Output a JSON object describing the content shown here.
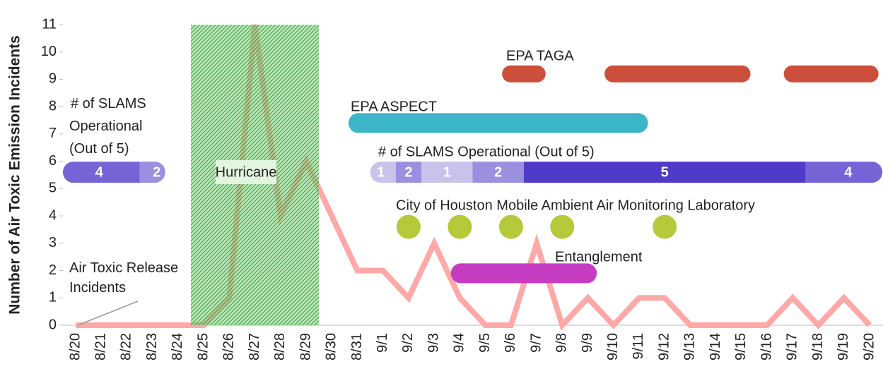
{
  "chart_data": {
    "type": "line",
    "y_label": "Number of Air Toxic Emission Incidents",
    "categories": [
      "8/20",
      "8/21",
      "8/22",
      "8/23",
      "8/24",
      "8/25",
      "8/26",
      "8/27",
      "8/28",
      "8/29",
      "8/30",
      "8/31",
      "9/1",
      "9/2",
      "9/3",
      "9/4",
      "9/5",
      "9/6",
      "9/7",
      "9/8",
      "9/9",
      "9/10",
      "9/11",
      "9/12",
      "9/13",
      "9/14",
      "9/15",
      "9/16",
      "9/17",
      "9/18",
      "9/19",
      "9/20"
    ],
    "series": [
      {
        "name": "Air Toxic Release Incidents",
        "name_lines": [
          "Air Toxic Release",
          "Incidents"
        ],
        "color": "#ffa8a8",
        "values": [
          0,
          0,
          0,
          0,
          0,
          0,
          1,
          11,
          4,
          6,
          4,
          2,
          2,
          1,
          3,
          1,
          0,
          0,
          3,
          0,
          1,
          0,
          1,
          1,
          0,
          0,
          0,
          0,
          1,
          0,
          1,
          0
        ]
      }
    ],
    "ylim": [
      0,
      11
    ],
    "yticks": [
      0,
      1,
      2,
      3,
      4,
      5,
      6,
      7,
      8,
      9,
      10,
      11
    ],
    "hurricane": {
      "label": "Hurricane",
      "from": "8/25",
      "to": "8/29"
    },
    "tracks": [
      {
        "name": "EPA TAGA",
        "y": 9.2,
        "color": "#cc4f3b",
        "spans": [
          {
            "from": "9/6",
            "to": "9/7"
          },
          {
            "from": "9/10",
            "to": "9/15"
          },
          {
            "from": "9/17",
            "to": "9/20"
          }
        ]
      },
      {
        "name": "EPA ASPECT",
        "y": 7.4,
        "color": "#3db5c9",
        "spans": [
          {
            "from": "8/31",
            "to": "9/11"
          }
        ]
      },
      {
        "name": "Entanglement",
        "y": 1.9,
        "color": "#c63cc0",
        "spans": [
          {
            "from": "9/4",
            "to": "9/9"
          }
        ]
      }
    ],
    "slams": {
      "name": "# of SLAMS Operational (Out of 5)",
      "name_lines": [
        "# of SLAMS",
        "Operational",
        "(Out of 5)"
      ],
      "y": 5.6,
      "colors": {
        "1": "#c9c3ec",
        "2": "#9b8fe0",
        "4": "#7464d6",
        "5": "#4f3bc9"
      },
      "runs": [
        [
          {
            "from": "8/20",
            "to": "8/22",
            "value": 4
          },
          {
            "from": "8/23",
            "to": "8/23",
            "value": 2
          }
        ],
        [
          {
            "from": "9/1",
            "to": "9/1",
            "value": 1
          },
          {
            "from": "9/2",
            "to": "9/2",
            "value": 2
          },
          {
            "from": "9/3",
            "to": "9/4",
            "value": 1
          },
          {
            "from": "9/5",
            "to": "9/6",
            "value": 2
          },
          {
            "from": "9/7",
            "to": "9/17",
            "value": 5
          },
          {
            "from": "9/18",
            "to": "9/20",
            "value": 4
          }
        ]
      ]
    },
    "mobile_lab": {
      "name": "City of Houston Mobile Ambient Air Monitoring Laboratory",
      "y": 3.6,
      "color": "#b5c93b",
      "dates": [
        "9/2",
        "9/4",
        "9/6",
        "9/8",
        "9/12"
      ]
    }
  }
}
